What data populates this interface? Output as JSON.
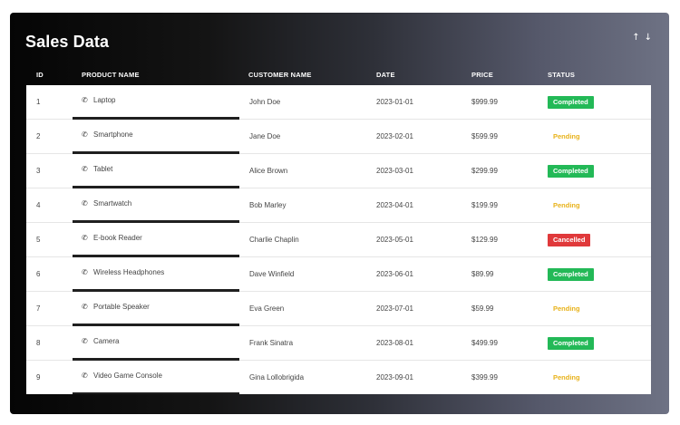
{
  "title": "Sales Data",
  "sort_icons": {
    "up": "↑",
    "down": "↓"
  },
  "icons": {
    "product": "phone-icon",
    "sort_up": "arrow-up-icon",
    "sort_down": "arrow-down-icon"
  },
  "colors": {
    "completed": "#23b957",
    "pending": "#e8b21a",
    "cancelled": "#e0393b"
  },
  "columns": [
    "ID",
    "PRODUCT NAME",
    "CUSTOMER NAME",
    "DATE",
    "PRICE",
    "STATUS"
  ],
  "rows": [
    {
      "id": "1",
      "product": "Laptop",
      "customer": "John Doe",
      "date": "2023-01-01",
      "price": "$999.99",
      "status": "Completed"
    },
    {
      "id": "2",
      "product": "Smartphone",
      "customer": "Jane Doe",
      "date": "2023-02-01",
      "price": "$599.99",
      "status": "Pending"
    },
    {
      "id": "3",
      "product": "Tablet",
      "customer": "Alice Brown",
      "date": "2023-03-01",
      "price": "$299.99",
      "status": "Completed"
    },
    {
      "id": "4",
      "product": "Smartwatch",
      "customer": "Bob Marley",
      "date": "2023-04-01",
      "price": "$199.99",
      "status": "Pending"
    },
    {
      "id": "5",
      "product": "E-book Reader",
      "customer": "Charlie Chaplin",
      "date": "2023-05-01",
      "price": "$129.99",
      "status": "Cancelled"
    },
    {
      "id": "6",
      "product": "Wireless Headphones",
      "customer": "Dave Winfield",
      "date": "2023-06-01",
      "price": "$89.99",
      "status": "Completed"
    },
    {
      "id": "7",
      "product": "Portable Speaker",
      "customer": "Eva Green",
      "date": "2023-07-01",
      "price": "$59.99",
      "status": "Pending"
    },
    {
      "id": "8",
      "product": "Camera",
      "customer": "Frank Sinatra",
      "date": "2023-08-01",
      "price": "$499.99",
      "status": "Completed"
    },
    {
      "id": "9",
      "product": "Video Game Console",
      "customer": "Gina Lollobrigida",
      "date": "2023-09-01",
      "price": "$399.99",
      "status": "Pending"
    }
  ]
}
